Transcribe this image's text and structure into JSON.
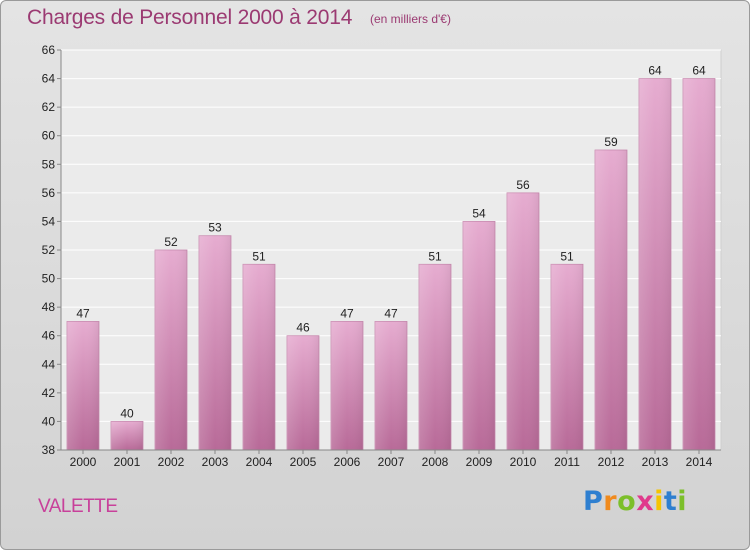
{
  "title": "Charges de Personnel 2000 à 2014",
  "subtitle": "(en milliers d'€)",
  "commune": "VALETTE",
  "logo": {
    "letters": [
      {
        "char": "P",
        "color": "#2e7fd0"
      },
      {
        "char": "r",
        "color": "#f08a1d"
      },
      {
        "char": "o",
        "color": "#7cbf2a"
      },
      {
        "char": "x",
        "color": "#e03a8c"
      },
      {
        "char": "i",
        "color": "#f5c400"
      },
      {
        "char": "t",
        "color": "#2e7fd0"
      },
      {
        "char": "i",
        "color": "#7cbf2a"
      }
    ]
  },
  "colors": {
    "title": "#9b3a72",
    "bar_light": "#e6acd0",
    "bar_dark": "#b86a98",
    "axis_text": "#222222"
  },
  "chart_data": {
    "type": "bar",
    "categories": [
      "2000",
      "2001",
      "2002",
      "2003",
      "2004",
      "2005",
      "2006",
      "2007",
      "2008",
      "2009",
      "2010",
      "2011",
      "2012",
      "2013",
      "2014"
    ],
    "values": [
      47,
      40,
      52,
      53,
      51,
      46,
      47,
      47,
      51,
      54,
      56,
      51,
      59,
      64,
      64
    ],
    "ylim": [
      38,
      66
    ],
    "yticks": [
      38,
      40,
      42,
      44,
      46,
      48,
      50,
      52,
      54,
      56,
      58,
      60,
      62,
      64,
      66
    ],
    "grid": true,
    "data_labels": true
  }
}
